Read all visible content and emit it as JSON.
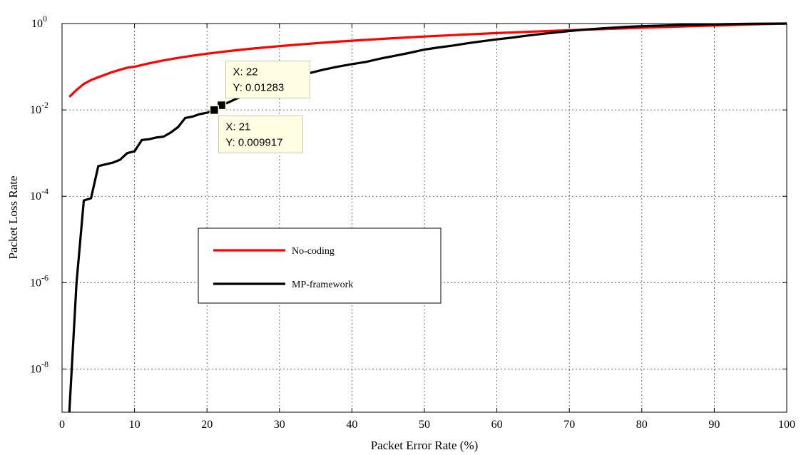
{
  "chart_data": {
    "type": "line",
    "xlabel": "Packet Error Rate (%)",
    "ylabel": "Packet Loss Rate",
    "xlim": [
      0,
      100
    ],
    "ylim": [
      1e-09,
      1
    ],
    "yscale": "log",
    "grid": true,
    "legend_position": "center-left",
    "x_ticks": [
      0,
      10,
      20,
      30,
      40,
      50,
      60,
      70,
      80,
      90,
      100
    ],
    "y_ticks": [
      {
        "value": 1,
        "base": "10",
        "exp": "0"
      },
      {
        "value": 0.01,
        "base": "10",
        "exp": "-2"
      },
      {
        "value": 0.0001,
        "base": "10",
        "exp": "-4"
      },
      {
        "value": 1e-06,
        "base": "10",
        "exp": "-6"
      },
      {
        "value": 1e-08,
        "base": "10",
        "exp": "-8"
      }
    ],
    "series": [
      {
        "name": "No-coding",
        "color": "#ff0000",
        "x": [
          1,
          2,
          3,
          4,
          5,
          6,
          7,
          8,
          9,
          10,
          12,
          14,
          16,
          18,
          20,
          22,
          24,
          26,
          28,
          30,
          32,
          35,
          38,
          40,
          45,
          50,
          55,
          60,
          65,
          70,
          75,
          80,
          85,
          90,
          95,
          100
        ],
        "y": [
          0.02,
          0.029,
          0.04,
          0.049,
          0.057,
          0.066,
          0.076,
          0.085,
          0.095,
          0.1,
          0.12,
          0.14,
          0.16,
          0.18,
          0.2,
          0.22,
          0.24,
          0.26,
          0.28,
          0.3,
          0.32,
          0.35,
          0.38,
          0.4,
          0.45,
          0.5,
          0.55,
          0.6,
          0.65,
          0.7,
          0.75,
          0.8,
          0.85,
          0.9,
          0.95,
          1.0
        ]
      },
      {
        "name": "MP-framework",
        "color": "#000000",
        "x": [
          1,
          2,
          3,
          4,
          5,
          6,
          7,
          8,
          9,
          10,
          11,
          12,
          13,
          14,
          15,
          16,
          17,
          18,
          19,
          20,
          21,
          22,
          23,
          24,
          25,
          26,
          27,
          28,
          29,
          30,
          32,
          34,
          36,
          38,
          40,
          42,
          44,
          46,
          48,
          50,
          52,
          54,
          56,
          58,
          60,
          62,
          64,
          66,
          68,
          70,
          72,
          75,
          78,
          80,
          85,
          90,
          95,
          100
        ],
        "y": [
          1e-09,
          1e-06,
          8e-05,
          9e-05,
          0.0005,
          0.00055,
          0.0006,
          0.0007,
          0.001,
          0.0011,
          0.002,
          0.0021,
          0.0023,
          0.0024,
          0.003,
          0.004,
          0.0065,
          0.007,
          0.008,
          0.0086,
          0.009917,
          0.01283,
          0.015,
          0.018,
          0.021,
          0.025,
          0.03,
          0.035,
          0.041,
          0.048,
          0.058,
          0.07,
          0.085,
          0.1,
          0.115,
          0.13,
          0.155,
          0.18,
          0.21,
          0.25,
          0.28,
          0.31,
          0.35,
          0.39,
          0.43,
          0.47,
          0.52,
          0.57,
          0.62,
          0.67,
          0.72,
          0.78,
          0.84,
          0.87,
          0.92,
          0.96,
          0.985,
          1.0
        ]
      }
    ],
    "datatips": [
      {
        "x": 22,
        "y": 0.01283,
        "text_x": "X: 22",
        "text_y": "Y: 0.01283",
        "placement": "above-right"
      },
      {
        "x": 21,
        "y": 0.009917,
        "text_x": "X: 21",
        "text_y": "Y: 0.009917",
        "placement": "below-right"
      }
    ]
  }
}
